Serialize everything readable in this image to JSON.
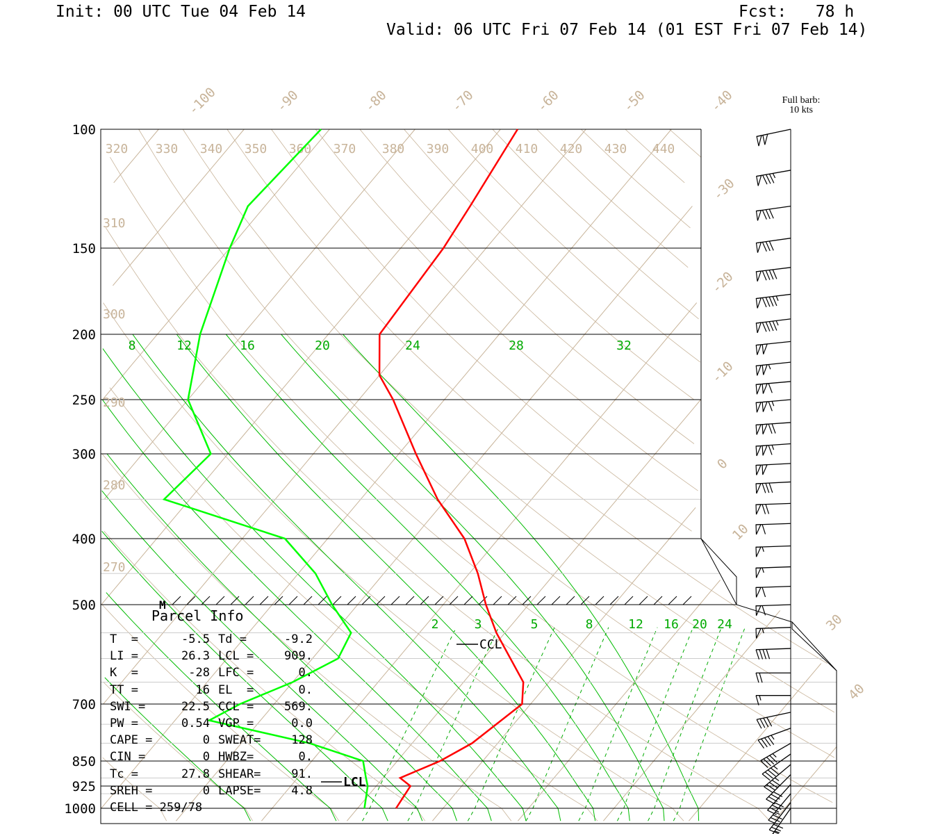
{
  "header": {
    "init": "Init: 00 UTC Tue 04 Feb 14",
    "fcst": "Fcst:   78 h",
    "valid": "Valid: 06 UTC Fri 07 Feb 14 (01 EST Fri 07 Feb 14)"
  },
  "barb_legend": {
    "line1": "Full barb:",
    "line2": "10 kts"
  },
  "parcel_info": {
    "title": "Parcel Info",
    "rows": [
      {
        "l1": "T  =",
        "v1": "-5.5",
        "l2": "Td =",
        "v2": "-9.2"
      },
      {
        "l1": "LI =",
        "v1": "26.3",
        "l2": "LCL =",
        "v2": "909."
      },
      {
        "l1": "K  =",
        "v1": "-28",
        "l2": "LFC =",
        "v2": "0."
      },
      {
        "l1": "TT =",
        "v1": "16",
        "l2": "EL  =",
        "v2": "0."
      },
      {
        "l1": "SWI =",
        "v1": "22.5",
        "l2": "CCL =",
        "v2": "569."
      },
      {
        "l1": "PW =",
        "v1": "0.54",
        "l2": "VGP =",
        "v2": "0.0"
      },
      {
        "l1": "CAPE =",
        "v1": "0",
        "l2": "SWEAT=",
        "v2": "128"
      },
      {
        "l1": "CIN =",
        "v1": "0",
        "l2": "HWBZ=",
        "v2": "0."
      },
      {
        "l1": "Tc =",
        "v1": "27.8",
        "l2": "SHEAR=",
        "v2": "91."
      },
      {
        "l1": "SREH =",
        "v1": "0",
        "l2": "LAPSE=",
        "v2": "4.8"
      }
    ],
    "cell": "CELL = 259/78"
  },
  "chart_data": {
    "type": "skew-t",
    "pressure_levels": [
      "100",
      "150",
      "200",
      "250",
      "300",
      "400",
      "500",
      "700",
      "850",
      "925",
      "1000"
    ],
    "isotherm_labels": [
      "-100",
      "-90",
      "-80",
      "-70",
      "-60",
      "-50",
      "-40",
      "-30",
      "-20",
      "-10",
      "0",
      "10",
      "30",
      "40"
    ],
    "theta_labels_top": [
      "320",
      "330",
      "340",
      "350",
      "360",
      "370",
      "380",
      "390",
      "400",
      "410",
      "420",
      "430",
      "440"
    ],
    "theta_labels_left": [
      "310",
      "300",
      "290",
      "280",
      "270"
    ],
    "mixing_ratio_labels_upper": [
      "8",
      "12",
      "16",
      "20",
      "24",
      "28",
      "32"
    ],
    "mixing_ratio_labels_lower": [
      "2",
      "3",
      "5",
      "8",
      "12",
      "16",
      "20",
      "24"
    ],
    "markers": {
      "lcl": "LCL",
      "ccl": "CCL",
      "m": "M"
    },
    "temperature_profile_C": [
      {
        "p": 100,
        "t": -58
      },
      {
        "p": 130,
        "t": -56
      },
      {
        "p": 150,
        "t": -55
      },
      {
        "p": 200,
        "t": -54
      },
      {
        "p": 230,
        "t": -50
      },
      {
        "p": 250,
        "t": -46
      },
      {
        "p": 300,
        "t": -38
      },
      {
        "p": 350,
        "t": -31
      },
      {
        "p": 400,
        "t": -24
      },
      {
        "p": 450,
        "t": -19
      },
      {
        "p": 500,
        "t": -15
      },
      {
        "p": 550,
        "t": -11
      },
      {
        "p": 650,
        "t": -3
      },
      {
        "p": 700,
        "t": -1
      },
      {
        "p": 800,
        "t": -3
      },
      {
        "p": 850,
        "t": -5
      },
      {
        "p": 900,
        "t": -8
      },
      {
        "p": 925,
        "t": -6
      },
      {
        "p": 1000,
        "t": -5.5
      }
    ],
    "dewpoint_profile_C": [
      {
        "p": 100,
        "t": -81
      },
      {
        "p": 130,
        "t": -82
      },
      {
        "p": 150,
        "t": -80
      },
      {
        "p": 200,
        "t": -75
      },
      {
        "p": 250,
        "t": -70
      },
      {
        "p": 300,
        "t": -62
      },
      {
        "p": 350,
        "t": -63
      },
      {
        "p": 400,
        "t": -45
      },
      {
        "p": 450,
        "t": -38
      },
      {
        "p": 500,
        "t": -33
      },
      {
        "p": 550,
        "t": -28
      },
      {
        "p": 600,
        "t": -27
      },
      {
        "p": 650,
        "t": -30
      },
      {
        "p": 700,
        "t": -34
      },
      {
        "p": 740,
        "t": -36
      },
      {
        "p": 800,
        "t": -22
      },
      {
        "p": 850,
        "t": -14
      },
      {
        "p": 900,
        "t": -12
      },
      {
        "p": 925,
        "t": -11
      },
      {
        "p": 1000,
        "t": -9.2
      }
    ],
    "wind_barbs": [
      {
        "p": 100,
        "dir": 258,
        "kt": 100
      },
      {
        "p": 115,
        "dir": 260,
        "kt": 85
      },
      {
        "p": 130,
        "dir": 262,
        "kt": 80
      },
      {
        "p": 145,
        "dir": 262,
        "kt": 80
      },
      {
        "p": 160,
        "dir": 263,
        "kt": 90
      },
      {
        "p": 175,
        "dir": 263,
        "kt": 95
      },
      {
        "p": 190,
        "dir": 263,
        "kt": 95
      },
      {
        "p": 205,
        "dir": 264,
        "kt": 100
      },
      {
        "p": 220,
        "dir": 264,
        "kt": 105
      },
      {
        "p": 235,
        "dir": 265,
        "kt": 110
      },
      {
        "p": 250,
        "dir": 265,
        "kt": 115
      },
      {
        "p": 270,
        "dir": 266,
        "kt": 120
      },
      {
        "p": 290,
        "dir": 266,
        "kt": 115
      },
      {
        "p": 310,
        "dir": 267,
        "kt": 100
      },
      {
        "p": 330,
        "dir": 267,
        "kt": 80
      },
      {
        "p": 355,
        "dir": 268,
        "kt": 70
      },
      {
        "p": 380,
        "dir": 268,
        "kt": 60
      },
      {
        "p": 410,
        "dir": 268,
        "kt": 55
      },
      {
        "p": 440,
        "dir": 268,
        "kt": 55
      },
      {
        "p": 470,
        "dir": 268,
        "kt": 60
      },
      {
        "p": 500,
        "dir": 268,
        "kt": 60
      },
      {
        "p": 540,
        "dir": 268,
        "kt": 55
      },
      {
        "p": 580,
        "dir": 268,
        "kt": 40
      },
      {
        "p": 630,
        "dir": 270,
        "kt": 20
      },
      {
        "p": 680,
        "dir": 270,
        "kt": 15
      },
      {
        "p": 720,
        "dir": 258,
        "kt": 40
      },
      {
        "p": 760,
        "dir": 250,
        "kt": 45
      },
      {
        "p": 800,
        "dir": 240,
        "kt": 45
      },
      {
        "p": 830,
        "dir": 235,
        "kt": 45
      },
      {
        "p": 860,
        "dir": 230,
        "kt": 45
      },
      {
        "p": 890,
        "dir": 225,
        "kt": 40
      },
      {
        "p": 920,
        "dir": 222,
        "kt": 40
      },
      {
        "p": 950,
        "dir": 220,
        "kt": 35
      },
      {
        "p": 980,
        "dir": 218,
        "kt": 30
      },
      {
        "p": 1000,
        "dir": 215,
        "kt": 25
      }
    ],
    "colors": {
      "temperature": "#ff0000",
      "dewpoint": "#00ff00",
      "isotherm": "#c8b49a",
      "mixing_ratio": "#00aa00",
      "moist_adiabat": "#00bb00",
      "isobar": "#000000",
      "barb": "#000000"
    }
  }
}
